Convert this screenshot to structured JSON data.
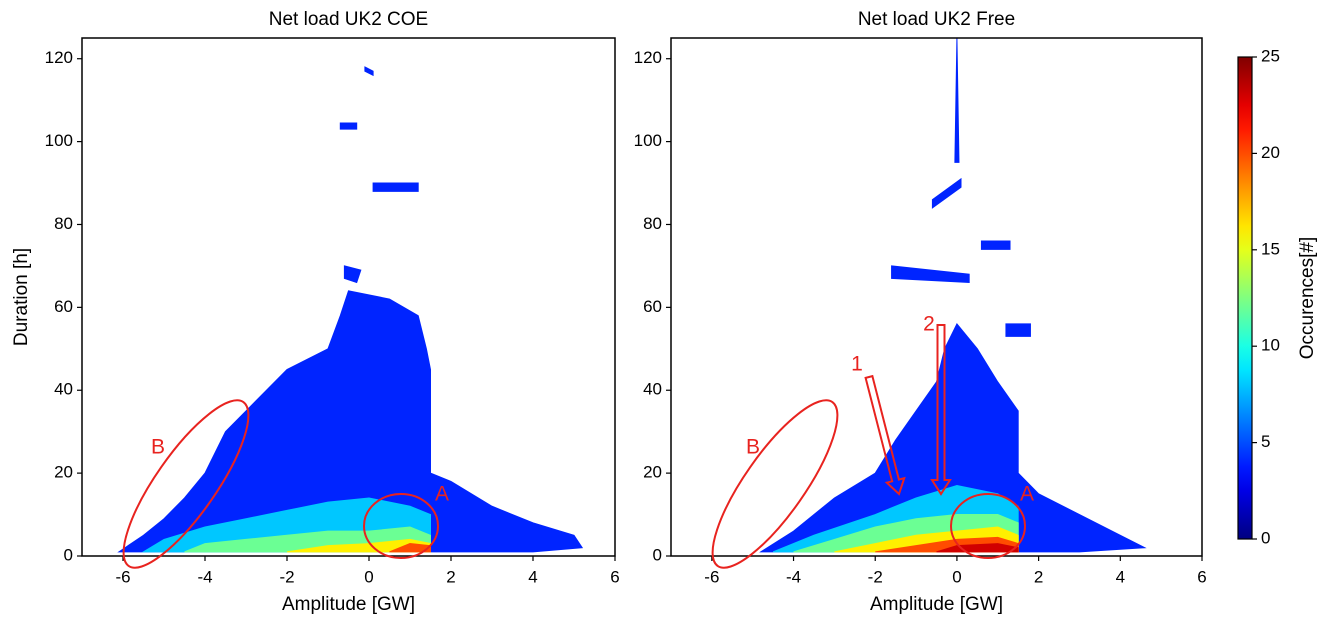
{
  "chart_data": [
    {
      "type": "contour",
      "title": "Net load UK2 COE",
      "xlabel": "Amplitude [GW]",
      "ylabel": "Duration [h]",
      "xlim": [
        -7,
        6
      ],
      "xticks": [
        -6,
        -4,
        -2,
        0,
        2,
        4,
        6
      ],
      "ylim": [
        0,
        125
      ],
      "yticks": [
        0,
        20,
        40,
        60,
        80,
        100,
        120
      ],
      "colormap": "jet",
      "contours": [
        {
          "level": 4,
          "x": [
            -6.1,
            -5.5,
            -5,
            -4.5,
            -4,
            -3.5,
            -3,
            -2.5,
            -2,
            -1,
            -0.7,
            -0.5,
            0.5,
            1.2,
            1.4,
            1.5,
            1.5,
            2,
            3,
            4,
            5,
            5.2,
            4,
            1.5,
            -6.1
          ],
          "y": [
            1,
            5,
            9,
            14,
            20,
            30,
            35,
            40,
            45,
            50,
            58,
            64,
            62,
            58,
            50,
            45,
            20,
            18,
            12,
            8,
            5,
            2,
            1,
            1,
            1
          ]
        },
        {
          "level": 4,
          "x": [
            -0.1,
            0.1,
            0.1,
            -0.1
          ],
          "y": [
            118,
            117,
            116,
            117
          ]
        },
        {
          "level": 4,
          "x": [
            -0.7,
            -0.3,
            -0.3,
            -0.7
          ],
          "y": [
            104.5,
            104.5,
            103,
            103
          ]
        },
        {
          "level": 4,
          "x": [
            0.1,
            1.2,
            1.2,
            0.1
          ],
          "y": [
            90,
            90,
            88,
            88
          ]
        },
        {
          "level": 4,
          "x": [
            -0.6,
            -0.2,
            -0.3,
            -0.6
          ],
          "y": [
            70,
            69,
            66,
            67
          ]
        },
        {
          "level": 8,
          "x": [
            -5.5,
            -5,
            -4,
            -3,
            -2,
            -1,
            0,
            1,
            1.5,
            1.5,
            -5.5
          ],
          "y": [
            1,
            4,
            7,
            9,
            11,
            13,
            14,
            12,
            10,
            1,
            1
          ]
        },
        {
          "level": 12,
          "x": [
            -4.5,
            -4,
            -3,
            -2,
            -1,
            0,
            1,
            1.5,
            1.5,
            -4.5
          ],
          "y": [
            1,
            3,
            4,
            5,
            6,
            6,
            7,
            5,
            1,
            1
          ]
        },
        {
          "level": 16,
          "x": [
            -2,
            -1,
            0,
            1,
            1.5,
            1.5,
            -2
          ],
          "y": [
            1,
            2.5,
            3,
            4,
            3,
            1,
            1
          ]
        },
        {
          "level": 20,
          "x": [
            0.5,
            1,
            1.5,
            1.5,
            0.5
          ],
          "y": [
            1,
            3,
            2.5,
            1,
            1
          ]
        }
      ],
      "annotations": [
        "B",
        "A"
      ]
    },
    {
      "type": "contour",
      "title": "Net load UK2 Free",
      "xlabel": "Amplitude [GW]",
      "xlim": [
        -7,
        6
      ],
      "xticks": [
        -6,
        -4,
        -2,
        0,
        2,
        4,
        6
      ],
      "ylim": [
        0,
        125
      ],
      "yticks": [
        0,
        20,
        40,
        60,
        80,
        100,
        120
      ],
      "colormap": "jet",
      "contours": [
        {
          "level": 4,
          "x": [
            -4.8,
            -4,
            -3,
            -2,
            -1.5,
            -1,
            -0.5,
            -0.3,
            0,
            0.5,
            1,
            1.5,
            1.5,
            2,
            3,
            4,
            4.6,
            3,
            -4.8
          ],
          "y": [
            1,
            6,
            14,
            20,
            28,
            35,
            42,
            50,
            56,
            50,
            42,
            35,
            20,
            15,
            10,
            5,
            2,
            1,
            1
          ]
        },
        {
          "level": 4,
          "x": [
            -0.05,
            0,
            0.05
          ],
          "y": [
            95,
            125,
            95
          ]
        },
        {
          "level": 4,
          "x": [
            -0.6,
            0.1,
            0.1,
            -0.6
          ],
          "y": [
            86,
            91,
            89,
            84
          ]
        },
        {
          "level": 4,
          "x": [
            0.6,
            1.3,
            1.3,
            0.6
          ],
          "y": [
            76,
            76,
            74,
            74
          ]
        },
        {
          "level": 4,
          "x": [
            -1.6,
            0.3,
            0.3,
            -1.6
          ],
          "y": [
            70,
            68,
            66,
            67
          ]
        },
        {
          "level": 4,
          "x": [
            1.2,
            1.8,
            1.8,
            1.2
          ],
          "y": [
            56,
            56,
            53,
            53
          ]
        },
        {
          "level": 8,
          "x": [
            -4.5,
            -3.5,
            -2,
            -1,
            0,
            1,
            1.5,
            1.5,
            -4.5
          ],
          "y": [
            1,
            5,
            10,
            14,
            17,
            15,
            12,
            1,
            1
          ]
        },
        {
          "level": 12,
          "x": [
            -4,
            -3,
            -2,
            -1,
            0,
            1,
            1.5,
            1.5,
            -4
          ],
          "y": [
            1,
            4,
            7,
            9,
            10,
            10,
            8,
            1,
            1
          ]
        },
        {
          "level": 16,
          "x": [
            -3,
            -2,
            -1,
            0,
            1,
            1.5,
            1.5,
            -3
          ],
          "y": [
            1,
            3,
            5,
            6,
            7,
            5,
            1,
            1
          ]
        },
        {
          "level": 20,
          "x": [
            -2,
            -1,
            0,
            1,
            1.5,
            1.5,
            -2
          ],
          "y": [
            1,
            2.5,
            4,
            4.5,
            3,
            1,
            1
          ]
        },
        {
          "level": 23,
          "x": [
            -0.5,
            0,
            1,
            1.5,
            1.5,
            -0.5
          ],
          "y": [
            1,
            2.5,
            3,
            2,
            1,
            1
          ]
        }
      ],
      "annotations": [
        "B",
        "A",
        "1",
        "2"
      ]
    }
  ],
  "colorbar": {
    "label": "Occurences[#]",
    "lim": [
      0,
      25
    ],
    "ticks": [
      0,
      5,
      10,
      15,
      20,
      25
    ]
  }
}
